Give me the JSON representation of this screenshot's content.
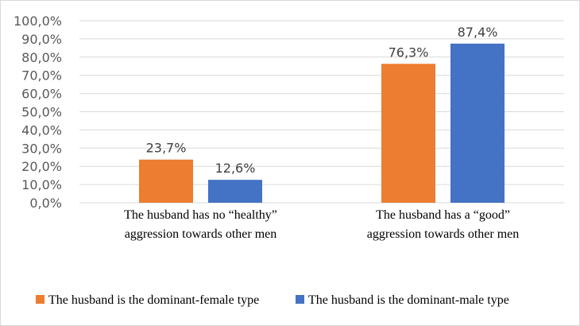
{
  "chart_data": {
    "type": "bar",
    "categories": [
      [
        "The husband has no “healthy”",
        "aggression towards other men"
      ],
      [
        "The husband has a “good”",
        "aggression towards other men"
      ]
    ],
    "series": [
      {
        "name": "The husband is the dominant-female type",
        "color": "#ED7D31",
        "values": [
          23.7,
          76.3
        ],
        "labels": [
          "23,7%",
          "76,3%"
        ]
      },
      {
        "name": "The husband is the dominant-male type",
        "color": "#4472C4",
        "values": [
          12.6,
          87.4
        ],
        "labels": [
          "12,6%",
          "87,4%"
        ]
      }
    ],
    "y_ticks": [
      "0,0%",
      "10,0%",
      "20,0%",
      "30,0%",
      "40,0%",
      "50,0%",
      "60,0%",
      "70,0%",
      "80,0%",
      "90,0%",
      "100,0%"
    ],
    "ylim": [
      0,
      100
    ],
    "title": "",
    "xlabel": "",
    "ylabel": "",
    "grid": true,
    "legend": "bottom-left"
  }
}
